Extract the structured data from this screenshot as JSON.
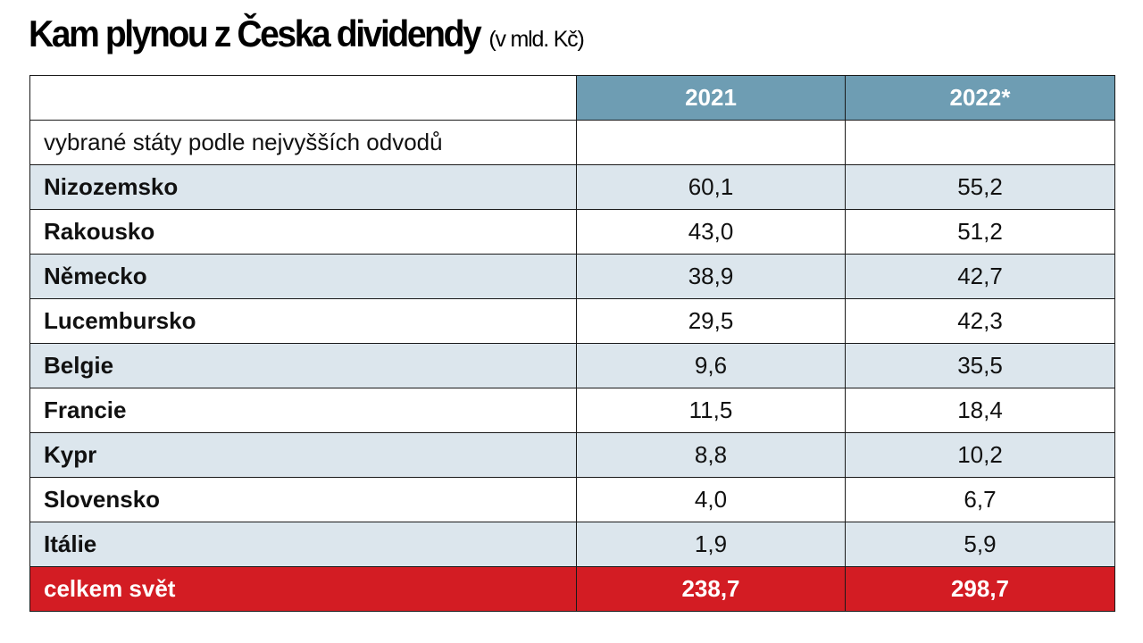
{
  "title": "Kam plynou z Česka dividendy",
  "subtitle": "(v mld. Kč)",
  "colors": {
    "header_bg": "#6e9db3",
    "shaded_row": "#dce6ed",
    "total_row": "#d31c23"
  },
  "chart_data": {
    "type": "table",
    "title": "Kam plynou z Česka dividendy",
    "subtitle": "(v mld. Kč)",
    "columns": [
      "",
      "2021",
      "2022*"
    ],
    "subheader": "vybrané státy podle nejvyšších odvodů",
    "rows": [
      {
        "name": "Nizozemsko",
        "v2021": "60,1",
        "v2022": "55,2"
      },
      {
        "name": "Rakousko",
        "v2021": "43,0",
        "v2022": "51,2"
      },
      {
        "name": "Německo",
        "v2021": "38,9",
        "v2022": "42,7"
      },
      {
        "name": "Lucembursko",
        "v2021": "29,5",
        "v2022": "42,3"
      },
      {
        "name": "Belgie",
        "v2021": "9,6",
        "v2022": "35,5"
      },
      {
        "name": "Francie",
        "v2021": "11,5",
        "v2022": "18,4"
      },
      {
        "name": "Kypr",
        "v2021": "8,8",
        "v2022": "10,2"
      },
      {
        "name": "Slovensko",
        "v2021": "4,0",
        "v2022": "6,7"
      },
      {
        "name": "Itálie",
        "v2021": "1,9",
        "v2022": "5,9"
      }
    ],
    "total": {
      "name": "celkem svět",
      "v2021": "238,7",
      "v2022": "298,7"
    }
  }
}
